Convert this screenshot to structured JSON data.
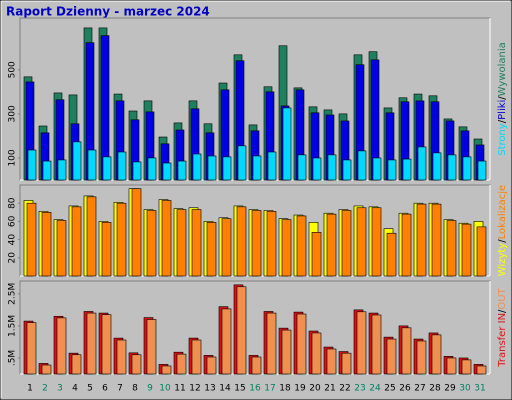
{
  "chart_data": [
    {
      "type": "bar",
      "title": "Raport Dzienny -  marzec 2024",
      "legend_separator": "/",
      "ylim": [
        0,
        735
      ],
      "yticks": [
        100,
        300,
        500
      ],
      "series": [
        {
          "name": "Wywolania",
          "color": "#1f8060",
          "values": [
            468,
            245,
            395,
            386,
            690,
            690,
            390,
            313,
            359,
            195,
            259,
            359,
            255,
            440,
            568,
            250,
            423,
            609,
            418,
            332,
            318,
            300,
            568,
            582,
            327,
            373,
            390,
            382,
            277,
            241,
            186
          ]
        },
        {
          "name": "Pliki",
          "color": "#0000e0",
          "values": [
            445,
            214,
            364,
            255,
            623,
            655,
            359,
            273,
            309,
            164,
            227,
            323,
            214,
            409,
            541,
            223,
            400,
            336,
            409,
            305,
            295,
            268,
            523,
            545,
            305,
            355,
            359,
            355,
            268,
            223,
            159
          ]
        },
        {
          "name": "Strony",
          "color": "#00d8ff",
          "values": [
            136,
            86,
            91,
            173,
            136,
            105,
            127,
            82,
            100,
            77,
            86,
            118,
            109,
            105,
            155,
            109,
            127,
            327,
            114,
            100,
            114,
            91,
            132,
            100,
            91,
            95,
            150,
            123,
            114,
            105,
            86
          ]
        }
      ]
    },
    {
      "type": "bar",
      "legend_separator": "/",
      "ylim": [
        0,
        100
      ],
      "yticks": [
        20,
        40,
        60,
        80
      ],
      "series": [
        {
          "name": "Wizyty",
          "color": "#ffff00",
          "values": [
            83,
            71,
            62,
            77,
            88,
            60,
            81,
            96,
            73,
            84,
            74,
            75,
            60,
            64,
            77,
            73,
            72,
            63,
            67,
            59,
            69,
            73,
            77,
            76,
            52,
            69,
            80,
            80,
            62,
            58,
            60
          ]
        },
        {
          "name": "Lokalizacje",
          "color": "#ff8000",
          "values": [
            80,
            70,
            61,
            76,
            87,
            59,
            80,
            96,
            72,
            83,
            73,
            73,
            59,
            63,
            76,
            72,
            71,
            62,
            66,
            48,
            68,
            72,
            75,
            75,
            47,
            68,
            79,
            79,
            61,
            57,
            54
          ]
        }
      ]
    },
    {
      "type": "bar",
      "legend_separator": "/",
      "ylim": [
        0,
        2.9
      ],
      "yticks": [
        {
          "value": 0.5,
          "label": ".5M"
        },
        {
          "value": 1.5,
          "label": "1.5M"
        },
        {
          "value": 2.5,
          "label": "2.5M"
        }
      ],
      "categories": [
        "1",
        "2",
        "3",
        "4",
        "5",
        "6",
        "7",
        "8",
        "9",
        "10",
        "11",
        "12",
        "13",
        "14",
        "15",
        "16",
        "17",
        "18",
        "19",
        "20",
        "21",
        "22",
        "23",
        "24",
        "25",
        "26",
        "27",
        "28",
        "29",
        "30",
        "31"
      ],
      "category_colors": [
        "#000000",
        "#008060",
        "#008060",
        "#000000",
        "#000000",
        "#000000",
        "#000000",
        "#000000",
        "#008060",
        "#008060",
        "#000000",
        "#000000",
        "#000000",
        "#000000",
        "#000000",
        "#008060",
        "#008060",
        "#000000",
        "#000000",
        "#000000",
        "#000000",
        "#000000",
        "#008060",
        "#008060",
        "#000000",
        "#000000",
        "#000000",
        "#000000",
        "#000000",
        "#008060",
        "#008060"
      ],
      "series": [
        {
          "name": "Transfer IN",
          "color": "#e01010",
          "values": [
            1.65,
            0.33,
            1.8,
            0.65,
            1.95,
            1.9,
            1.12,
            0.66,
            1.76,
            0.3,
            0.68,
            1.12,
            0.58,
            2.1,
            2.78,
            0.58,
            1.95,
            1.43,
            1.93,
            1.34,
            0.84,
            0.7,
            2.0,
            1.9,
            1.15,
            1.5,
            1.09,
            1.28,
            0.55,
            0.5,
            0.3
          ]
        },
        {
          "name": "OUT",
          "color": "#f09050",
          "values": [
            1.6,
            0.28,
            1.75,
            0.6,
            1.9,
            1.85,
            1.06,
            0.6,
            1.7,
            0.25,
            0.62,
            1.06,
            0.53,
            2.03,
            2.72,
            0.53,
            1.9,
            1.37,
            1.87,
            1.28,
            0.78,
            0.65,
            1.94,
            1.84,
            1.09,
            1.44,
            1.03,
            1.22,
            0.5,
            0.44,
            0.25
          ]
        }
      ]
    }
  ]
}
